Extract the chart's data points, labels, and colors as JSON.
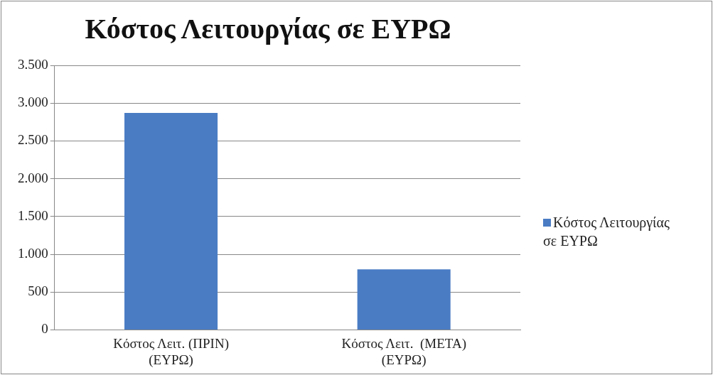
{
  "chart_data": {
    "type": "bar",
    "title": "Κόστος Λειτουργίας σε ΕΥΡΩ",
    "categories": [
      [
        "Κόστος Λειτ. (ΠΡΙΝ)",
        "(ΕΥΡΩ)"
      ],
      [
        "Κόστος Λειτ.  (ΜΕΤΑ)",
        "(ΕΥΡΩ)"
      ]
    ],
    "series": [
      {
        "name": "Κόστος Λειτουργίας σε ΕΥΡΩ",
        "color": "#4a7cc4",
        "values": [
          2870,
          800
        ]
      }
    ],
    "ylim": [
      0,
      3500
    ],
    "yticks": [
      {
        "value": 0,
        "label": "0"
      },
      {
        "value": 500,
        "label": "500"
      },
      {
        "value": 1000,
        "label": "1.000"
      },
      {
        "value": 1500,
        "label": "1.500"
      },
      {
        "value": 2000,
        "label": "2.000"
      },
      {
        "value": 2500,
        "label": "2.500"
      },
      {
        "value": 3000,
        "label": "3.000"
      },
      {
        "value": 3500,
        "label": "3.500"
      }
    ],
    "grid": "y",
    "legend": "right"
  }
}
